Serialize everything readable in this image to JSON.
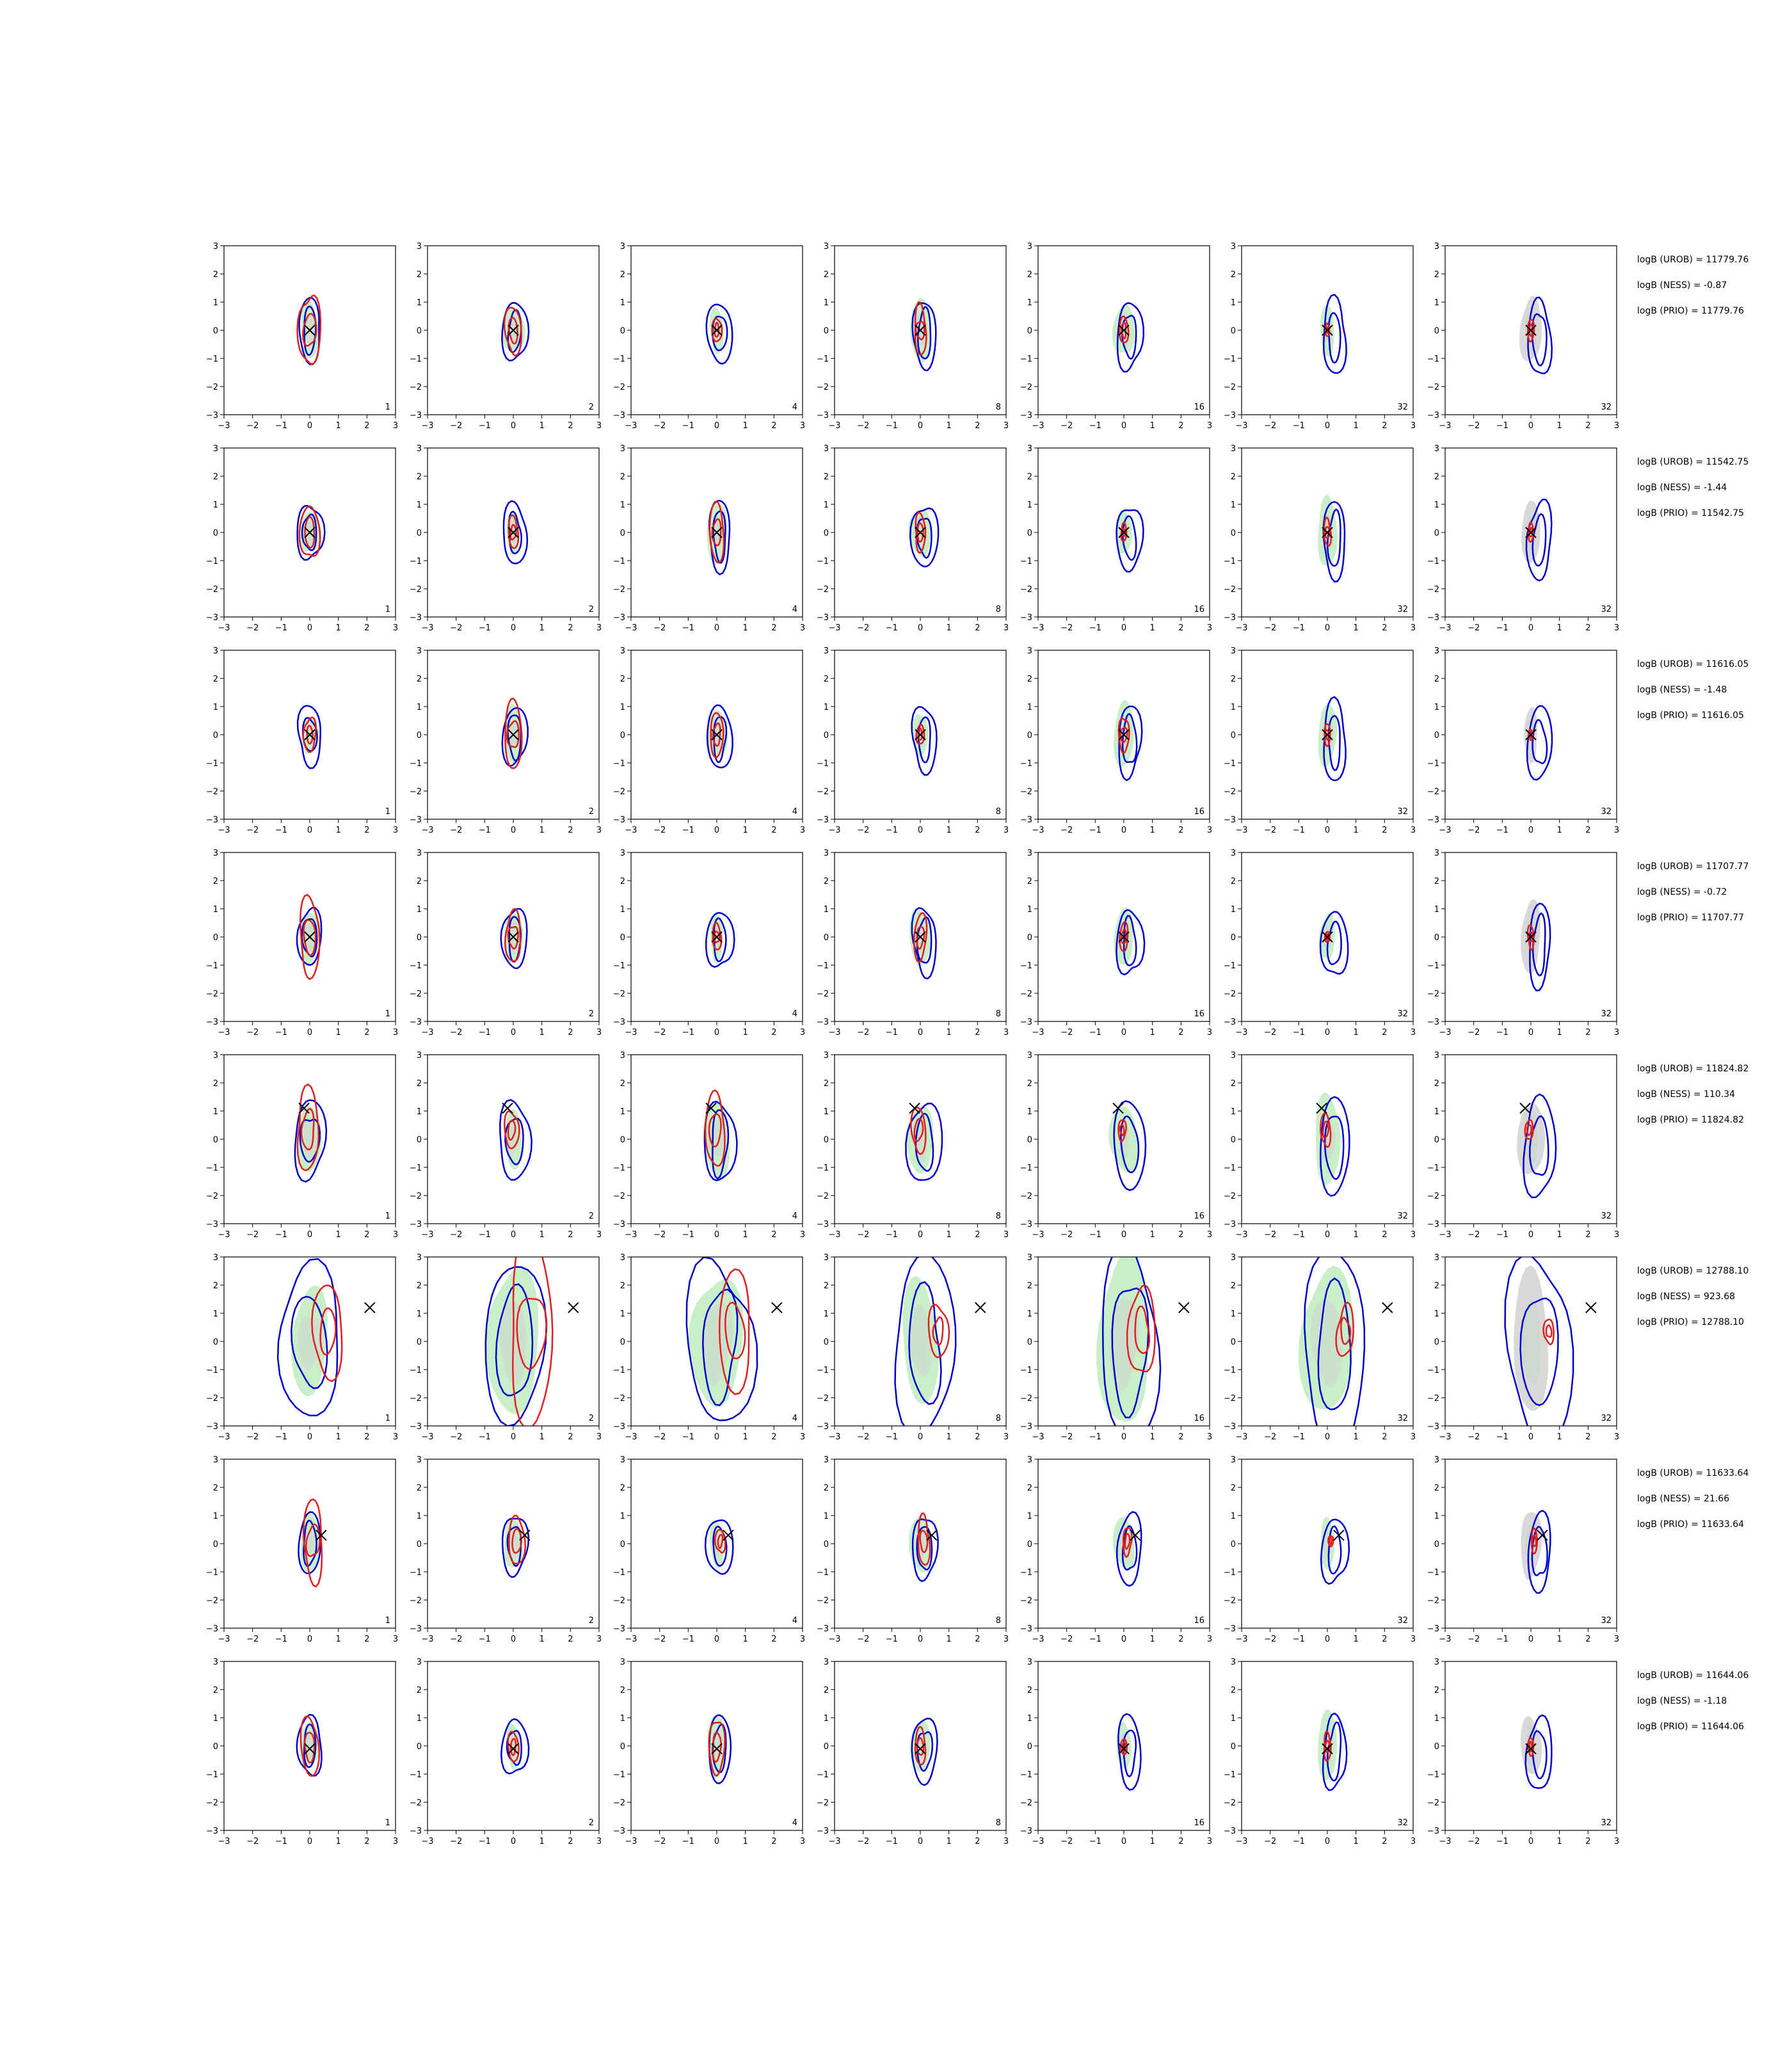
{
  "chart_data": {
    "type": "contour-grid",
    "rows": 8,
    "cols": 7,
    "xlim": [
      -3,
      3
    ],
    "ylim": [
      -3,
      3
    ],
    "xticks": [
      "−3",
      "−2",
      "−1",
      "0",
      "1",
      "2",
      "3"
    ],
    "yticks": [
      "3",
      "2",
      "1",
      "0",
      "−1",
      "−2",
      "−3"
    ],
    "col_labels": [
      "1",
      "2",
      "4",
      "8",
      "16",
      "32",
      "32"
    ],
    "colors": {
      "blue": "#0000cc",
      "red": "#e02020",
      "green": "#c8efc8",
      "gray": "#d9d9d9",
      "marker": "#000000"
    },
    "row_stats": [
      [
        "logB (UROB) = 11779.76",
        "logB (NESS) = -0.87",
        "logB (PRIO) = 11779.76"
      ],
      [
        "logB (UROB) = 11542.75",
        "logB (NESS) = -1.44",
        "logB (PRIO) = 11542.75"
      ],
      [
        "logB (UROB) = 11616.05",
        "logB (NESS) = -1.48",
        "logB (PRIO) = 11616.05"
      ],
      [
        "logB (UROB) = 11707.77",
        "logB (NESS) = -0.72",
        "logB (PRIO) = 11707.77"
      ],
      [
        "logB (UROB) = 11824.82",
        "logB (NESS) = 110.34",
        "logB (PRIO) = 11824.82"
      ],
      [
        "logB (UROB) = 12788.10",
        "logB (NESS) = 923.68",
        "logB (PRIO) = 12788.10"
      ],
      [
        "logB (UROB) = 11633.64",
        "logB (NESS) = 21.66",
        "logB (PRIO) = 11633.64"
      ],
      [
        "logB (UROB) = 11644.06",
        "logB (NESS) = -1.18",
        "logB (PRIO) = 11644.06"
      ]
    ],
    "true_points": [
      [
        0.0,
        0.0
      ],
      [
        0.0,
        0.0
      ],
      [
        0.0,
        0.0
      ],
      [
        0.0,
        0.0
      ],
      [
        -0.2,
        1.1
      ],
      [
        2.1,
        1.2
      ],
      [
        0.4,
        0.3
      ],
      [
        0.0,
        -0.1
      ]
    ],
    "contour_sets": [
      {
        "green": [
          0.35,
          0.95
        ],
        "gray": [
          0.2,
          0.5
        ],
        "blue": [
          [
            0.8,
            1.15
          ],
          [
            0.45,
            0.85
          ]
        ],
        "red": [
          [
            0.5,
            1.35
          ],
          [
            0.3,
            0.6
          ]
        ]
      },
      {
        "green": [
          0.35,
          0.8
        ],
        "gray": [
          0.2,
          0.5
        ],
        "blue": [
          [
            0.85,
            1.15
          ],
          [
            0.45,
            0.75
          ]
        ],
        "red": [
          [
            0.45,
            1.0
          ],
          [
            0.25,
            0.5
          ]
        ]
      },
      {
        "green": [
          0.25,
          0.7
        ],
        "gray": [
          0.15,
          0.4
        ],
        "blue": [
          [
            0.85,
            1.1
          ],
          [
            0.45,
            0.7
          ]
        ],
        "red": [
          [
            0.3,
            0.6
          ],
          [
            0.15,
            0.3
          ]
        ]
      }
    ]
  }
}
